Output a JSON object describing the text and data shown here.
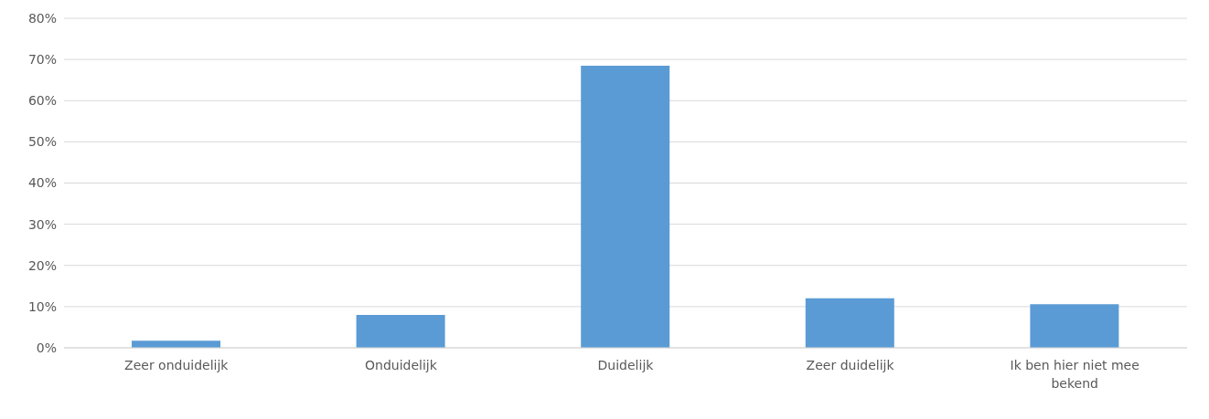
{
  "chart_data": {
    "type": "bar",
    "categories": [
      "Zeer onduidelijk",
      "Onduidelijk",
      "Duidelijk",
      "Zeer duidelijk",
      "Ik ben hier niet mee bekend"
    ],
    "values": [
      1.7,
      8,
      68.5,
      12,
      10.6
    ],
    "color": "#5b9bd5",
    "ylim": [
      0,
      80
    ],
    "yticks": [
      {
        "value": 0,
        "label": "0%"
      },
      {
        "value": 10,
        "label": "10%"
      },
      {
        "value": 20,
        "label": "20%"
      },
      {
        "value": 30,
        "label": "30%"
      },
      {
        "value": 40,
        "label": "40%"
      },
      {
        "value": 50,
        "label": "50%"
      },
      {
        "value": 60,
        "label": "60%"
      },
      {
        "value": 70,
        "label": "70%"
      },
      {
        "value": 80,
        "label": "80%"
      }
    ],
    "grid": "y",
    "legend": false
  }
}
